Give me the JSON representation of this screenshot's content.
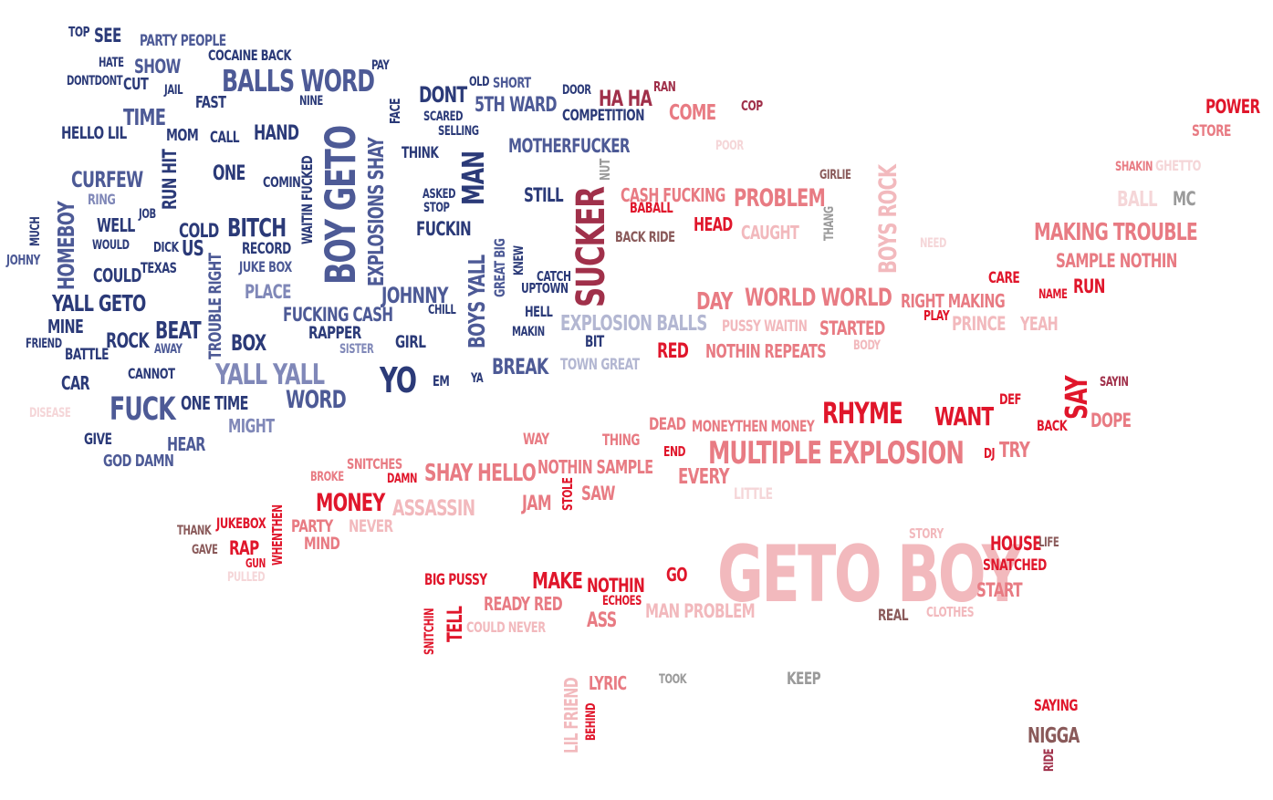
{
  "colors": {
    "navy": "#2b3a78",
    "slate": "#4d5a96",
    "periwinkle": "#8088b8",
    "lavender": "#b3b7d2",
    "maroon": "#a0304a",
    "red": "#e0162b",
    "salmon": "#e87b83",
    "pink": "#f2b9bd",
    "blush": "#f5d6d8",
    "grey": "#9a9a9a",
    "brown": "#8a5a5a"
  },
  "words": [
    "TOP",
    "SEE",
    "PARTY PEOPLE",
    "COCAINE BACK",
    "PAY",
    "HATE",
    "SHOW",
    "DONTDONT",
    "CUT",
    "JAIL",
    "BALLS WORD",
    "NINE",
    "FAST",
    "TIME",
    "HELLO LIL",
    "MOM",
    "CALL",
    "HAND",
    "ONE",
    "CURFEW",
    "RING",
    "JOB",
    "WELL",
    "WOULD",
    "DICK",
    "US",
    "COLD",
    "BITCH",
    "RECORD",
    "JUKE BOX",
    "JOHNY",
    "HOMEBOY",
    "COULD",
    "TEXAS",
    "YALL GETO",
    "PLACE",
    "MINE",
    "BEAT",
    "AWAY",
    "FRIEND",
    "ROCK",
    "BOX",
    "BATTLE",
    "CANNOT",
    "CAR",
    "YALL YALL",
    "WORD",
    "FUCK",
    "ONE TIME",
    "DISEASE",
    "MIGHT",
    "GIVE",
    "HEAR",
    "GOD DAMN",
    "COMIN",
    "FUCKING CASH",
    "RAPPER",
    "SISTER",
    "JOHNNY",
    "GIRL",
    "YO",
    "EM",
    "YA",
    "DONT",
    "OLD",
    "SHORT",
    "DOOR",
    "5TH WARD",
    "SCARED",
    "SELLING",
    "COMPETITION",
    "THINK",
    "MOTHERFUCKER",
    "STILL",
    "ASKED",
    "STOP",
    "FUCKIN",
    "CHILL",
    "CATCH",
    "UPTOWN",
    "HELL",
    "MAKIN",
    "BREAK",
    "HA HA",
    "RAN",
    "COME",
    "COP",
    "POOR",
    "CASH FUCKING",
    "BABALL",
    "PROBLEM",
    "BACK RIDE",
    "HEAD",
    "CAUGHT",
    "EXPLOSION BALLS",
    "BIT",
    "TOWN GREAT",
    "RED",
    "NOTHIN REPEATS",
    "DAY",
    "WORLD WORLD",
    "PUSSY WAITIN",
    "STARTED",
    "BODY",
    "GIRLIE",
    "RIGHT MAKING",
    "PLAY",
    "PRINCE",
    "YEAH",
    "NEED",
    "POWER",
    "STORE",
    "SHAKIN",
    "GHETTO",
    "BALL",
    "MC",
    "MAKING TROUBLE",
    "SAMPLE NOTHIN",
    "CARE",
    "NAME",
    "RUN",
    "RHYME",
    "WANT",
    "DEF",
    "BACK",
    "SAYIN",
    "DOPE",
    "DJ",
    "TRY",
    "DEAD",
    "MONEYTHEN MONEY",
    "WAY",
    "THING",
    "END",
    "MULTIPLE EXPLOSION",
    "EVERY",
    "LITTLE",
    "SNITCHES",
    "BROKE",
    "DAMN",
    "SHAY HELLO",
    "NOTHIN SAMPLE",
    "SAW",
    "JAM",
    "MONEY",
    "ASSASSIN",
    "PARTY",
    "NEVER",
    "MIND",
    "THANK",
    "JUKEBOX",
    "GAVE",
    "RAP",
    "GUN",
    "PULLED",
    "BIG PUSSY",
    "MAKE",
    "NOTHIN",
    "ECHOES",
    "GO",
    "READY RED",
    "ASS",
    "MAN PROBLEM",
    "COULD NEVER",
    "GETO BOY",
    "STORY",
    "HOUSE",
    "LIFE",
    "SNATCHED",
    "START",
    "REAL",
    "CLOTHES",
    "LYRIC",
    "TOOK",
    "KEEP",
    "SAYING",
    "NIGGA",
    "RUN HIT",
    "TROUBLE RIGHT",
    "BOY GETO",
    "WAITIN FUCKED",
    "EXPLOSIONS SHAY",
    "FACE",
    "MAN",
    "BOYS YALL",
    "GREAT BIG",
    "KNEW",
    "SUCKER",
    "NUT",
    "THANG",
    "BOYS ROCK",
    "SAY",
    "MUCH",
    "STOLE",
    "WHENTHEN",
    "TELL",
    "SNITCHIN",
    "LIL FRIEND",
    "BEHIND",
    "RIDE"
  ]
}
